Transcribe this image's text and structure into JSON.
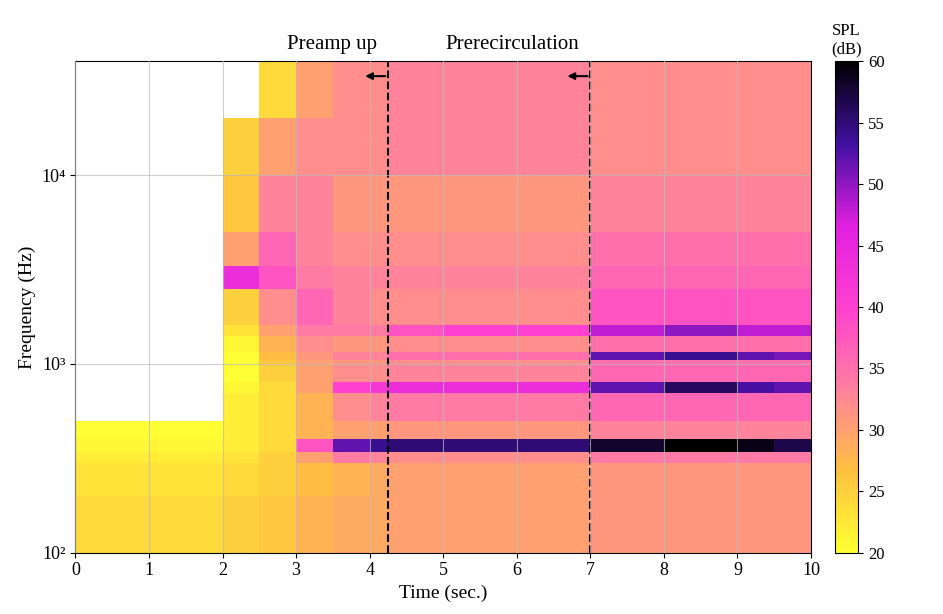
{
  "chart_data": {
    "type": "heatmap",
    "x_label": "Time (sec.)",
    "y_label": "Frequency (Hz)",
    "log": "y",
    "grid": true,
    "xlim": [
      0,
      10
    ],
    "ylim": [
      100,
      40000
    ],
    "xticks": [
      0,
      1,
      2,
      3,
      4,
      5,
      6,
      7,
      8,
      9,
      10
    ],
    "yticks": [
      {
        "value": 100,
        "label": "10²"
      },
      {
        "value": 1000,
        "label": "10³"
      },
      {
        "value": 10000,
        "label": "10⁴"
      }
    ],
    "time_edges": [
      0,
      1,
      2,
      2.5,
      3,
      3.5,
      4,
      4.25,
      5,
      6,
      7,
      8,
      9,
      9.5,
      10
    ],
    "frequency_edges": [
      100,
      200,
      300,
      340,
      400,
      500,
      700,
      800,
      1000,
      1050,
      1150,
      1400,
      1600,
      2500,
      3300,
      5000,
      10000,
      20000,
      40000
    ],
    "cells": [
      [
        24,
        24,
        25,
        26,
        28,
        29,
        29,
        30,
        30,
        30,
        31,
        31,
        31,
        31
      ],
      [
        23,
        23,
        24,
        25,
        27,
        28,
        29,
        30,
        30,
        30,
        31,
        31,
        31,
        31
      ],
      [
        22,
        22,
        23,
        25,
        30,
        34,
        33,
        32,
        32,
        32,
        34,
        34,
        34,
        34
      ],
      [
        21,
        21,
        22,
        24,
        38,
        52,
        54,
        55,
        55,
        55,
        58,
        60,
        59,
        57
      ],
      [
        20,
        20,
        22,
        24,
        28,
        30,
        30,
        31,
        31,
        31,
        33,
        33,
        33,
        33
      ],
      [
        18,
        18,
        22,
        24,
        28,
        32,
        33,
        34,
        34,
        34,
        36,
        36,
        36,
        36
      ],
      [
        17,
        17,
        21,
        24,
        30,
        40,
        42,
        44,
        44,
        44,
        52,
        56,
        53,
        52
      ],
      [
        16,
        16,
        20,
        25,
        30,
        32,
        32,
        33,
        33,
        33,
        36,
        36,
        36,
        36
      ],
      [
        15,
        15,
        20,
        26,
        30,
        31,
        31,
        32,
        32,
        32,
        35,
        35,
        35,
        35
      ],
      [
        15,
        15,
        20,
        27,
        31,
        33,
        33,
        35,
        35,
        35,
        52,
        54,
        52,
        51
      ],
      [
        15,
        15,
        21,
        28,
        32,
        31,
        31,
        32,
        32,
        32,
        35,
        35,
        35,
        35
      ],
      [
        15,
        15,
        23,
        30,
        34,
        34,
        34,
        38,
        40,
        40,
        48,
        50,
        48,
        48
      ],
      [
        15,
        15,
        25,
        32,
        36,
        33,
        32,
        32,
        32,
        32,
        38,
        38,
        38,
        38
      ],
      [
        15,
        15,
        44,
        38,
        34,
        33,
        33,
        33,
        33,
        33,
        36,
        36,
        36,
        36
      ],
      [
        15,
        15,
        30,
        36,
        33,
        32,
        32,
        32,
        32,
        32,
        35,
        35,
        35,
        35
      ],
      [
        15,
        15,
        26,
        33,
        33,
        31,
        31,
        31,
        31,
        31,
        33,
        33,
        33,
        33
      ],
      [
        15,
        15,
        25,
        30,
        32,
        32,
        32,
        33,
        33,
        33,
        32,
        32,
        32,
        32
      ],
      [
        15,
        15,
        18,
        24,
        30,
        32,
        32,
        33,
        33,
        33,
        32,
        32,
        32,
        32
      ]
    ],
    "colorbar_label": "SPL\n(dB)",
    "colorbar_range": [
      20,
      60
    ],
    "colorbar_ticks": [
      20,
      25,
      30,
      35,
      40,
      45,
      50,
      55,
      60
    ],
    "annotations": [
      {
        "text": "Preamp up",
        "x": 4.25
      },
      {
        "text": "Prerecirculation",
        "x": 7
      }
    ]
  }
}
